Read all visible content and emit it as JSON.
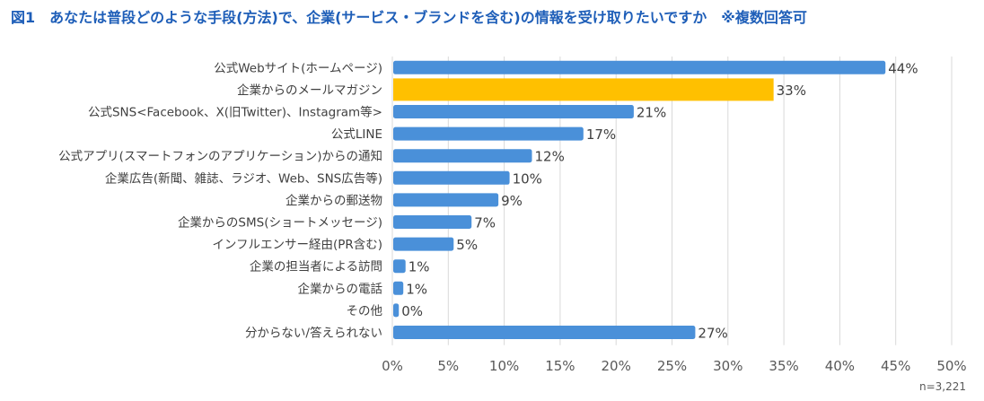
{
  "title": "図1　あなたは普段どのような手段(方法)で、企業(サービス・ブランドを含む)の情報を受け取りたいですか　※複数回答可",
  "note": "n=3,221",
  "colors": {
    "bar": "#4a90d9",
    "highlight": "#ffc000",
    "grid": "#d9d9d9",
    "title": "#1e5eb8"
  },
  "chart_data": {
    "type": "bar",
    "orientation": "horizontal",
    "title": "図1　あなたは普段どのような手段(方法)で、企業(サービス・ブランドを含む)の情報を受け取りたいですか　※複数回答可",
    "xlabel": "",
    "ylabel": "",
    "xlim": [
      0,
      50
    ],
    "grid": true,
    "categories": [
      "公式Webサイト(ホームページ)",
      "企業からのメールマガジン",
      "公式SNS<Facebook、X(旧Twitter)、Instagram等>",
      "公式LINE",
      "公式アプリ(スマートフォンのアプリケーション)からの通知",
      "企業広告(新聞、雑誌、ラジオ、Web、SNS広告等)",
      "企業からの郵送物",
      "企業からのSMS(ショートメッセージ)",
      "インフルエンサー経由(PR含む)",
      "企業の担当者による訪問",
      "企業からの電話",
      "その他",
      "分からない/答えられない"
    ],
    "values": [
      44,
      33,
      21,
      17,
      12,
      10,
      9,
      7,
      5,
      1,
      1,
      0,
      27
    ],
    "value_labels": [
      "44%",
      "33%",
      "21%",
      "17%",
      "12%",
      "10%",
      "9%",
      "7%",
      "5%",
      "1%",
      "1%",
      "0%",
      "27%"
    ],
    "value_draw": [
      44,
      34,
      21.5,
      17,
      12.4,
      10.4,
      9.4,
      7,
      5.4,
      1.1,
      0.9,
      0.5,
      27
    ],
    "highlight_index": 1,
    "ticks": [
      0,
      5,
      10,
      15,
      20,
      25,
      30,
      35,
      40,
      45,
      50
    ],
    "tick_labels": [
      "0%",
      "5%",
      "10%",
      "15%",
      "20%",
      "25%",
      "30%",
      "35%",
      "40%",
      "45%",
      "50%"
    ]
  }
}
